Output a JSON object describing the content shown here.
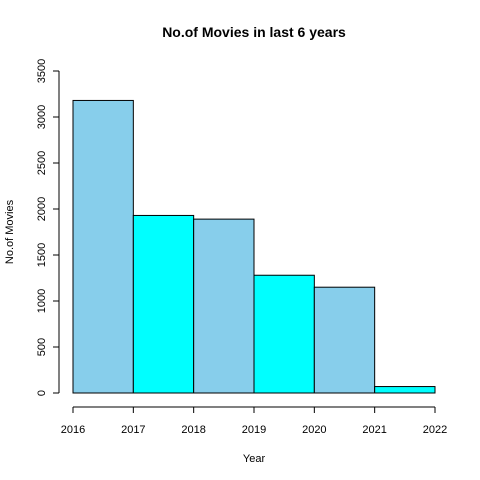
{
  "chart_data": {
    "type": "bar",
    "title": "No.of Movies in last 6 years",
    "xlabel": "Year",
    "ylabel": "No.of Movies",
    "x_ticks": [
      "2016",
      "2017",
      "2018",
      "2019",
      "2020",
      "2021",
      "2022"
    ],
    "bins": [
      {
        "start": 2016,
        "end": 2017,
        "value": 3180
      },
      {
        "start": 2017,
        "end": 2018,
        "value": 1930
      },
      {
        "start": 2018,
        "end": 2019,
        "value": 1890
      },
      {
        "start": 2019,
        "end": 2020,
        "value": 1280
      },
      {
        "start": 2020,
        "end": 2021,
        "value": 1150
      },
      {
        "start": 2021,
        "end": 2022,
        "value": 70
      }
    ],
    "xlim": [
      2016,
      2022
    ],
    "ylim": [
      0,
      3500
    ],
    "y_ticks": [
      "0",
      "500",
      "1000",
      "1500",
      "2000",
      "2500",
      "3000",
      "3500"
    ],
    "colors": [
      "#87CEEB",
      "#00FFFF"
    ],
    "grid": false,
    "legend": "none"
  }
}
